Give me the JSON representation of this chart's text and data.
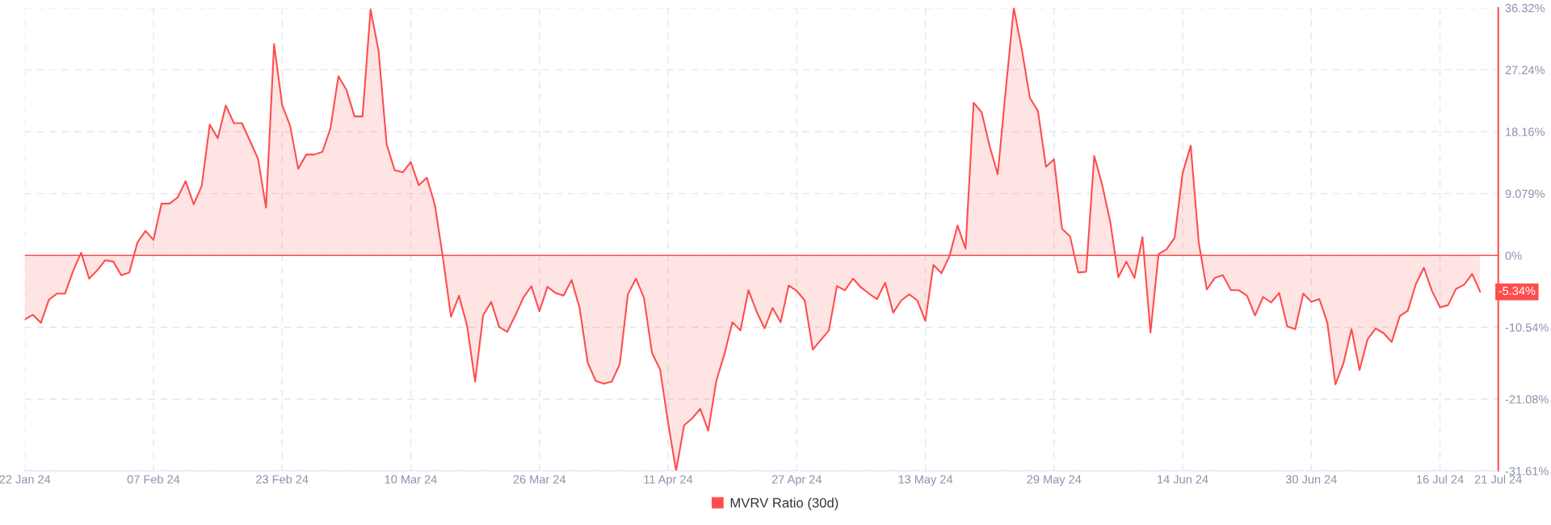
{
  "chart_data": {
    "type": "area",
    "x": [
      "2024-01-22",
      "2024-01-23",
      "2024-01-24",
      "2024-01-25",
      "2024-01-26",
      "2024-01-27",
      "2024-01-28",
      "2024-01-29",
      "2024-01-30",
      "2024-01-31",
      "2024-02-01",
      "2024-02-02",
      "2024-02-03",
      "2024-02-04",
      "2024-02-05",
      "2024-02-06",
      "2024-02-07",
      "2024-02-08",
      "2024-02-09",
      "2024-02-10",
      "2024-02-11",
      "2024-02-12",
      "2024-02-13",
      "2024-02-14",
      "2024-02-15",
      "2024-02-16",
      "2024-02-17",
      "2024-02-18",
      "2024-02-19",
      "2024-02-20",
      "2024-02-21",
      "2024-02-22",
      "2024-02-23",
      "2024-02-24",
      "2024-02-25",
      "2024-02-26",
      "2024-02-27",
      "2024-02-28",
      "2024-02-29",
      "2024-03-01",
      "2024-03-02",
      "2024-03-03",
      "2024-03-04",
      "2024-03-05",
      "2024-03-06",
      "2024-03-07",
      "2024-03-08",
      "2024-03-09",
      "2024-03-10",
      "2024-03-11",
      "2024-03-12",
      "2024-03-13",
      "2024-03-14",
      "2024-03-15",
      "2024-03-16",
      "2024-03-17",
      "2024-03-18",
      "2024-03-19",
      "2024-03-20",
      "2024-03-21",
      "2024-03-22",
      "2024-03-23",
      "2024-03-24",
      "2024-03-25",
      "2024-03-26",
      "2024-03-27",
      "2024-03-28",
      "2024-03-29",
      "2024-03-30",
      "2024-03-31",
      "2024-04-01",
      "2024-04-02",
      "2024-04-03",
      "2024-04-04",
      "2024-04-05",
      "2024-04-06",
      "2024-04-07",
      "2024-04-08",
      "2024-04-09",
      "2024-04-10",
      "2024-04-11",
      "2024-04-12",
      "2024-04-13",
      "2024-04-14",
      "2024-04-15",
      "2024-04-16",
      "2024-04-17",
      "2024-04-18",
      "2024-04-19",
      "2024-04-20",
      "2024-04-21",
      "2024-04-22",
      "2024-04-23",
      "2024-04-24",
      "2024-04-25",
      "2024-04-26",
      "2024-04-27",
      "2024-04-28",
      "2024-04-29",
      "2024-04-30",
      "2024-05-01",
      "2024-05-02",
      "2024-05-03",
      "2024-05-04",
      "2024-05-05",
      "2024-05-06",
      "2024-05-07",
      "2024-05-08",
      "2024-05-09",
      "2024-05-10",
      "2024-05-11",
      "2024-05-12",
      "2024-05-13",
      "2024-05-14",
      "2024-05-15",
      "2024-05-16",
      "2024-05-17",
      "2024-05-18",
      "2024-05-19",
      "2024-05-20",
      "2024-05-21",
      "2024-05-22",
      "2024-05-23",
      "2024-05-24",
      "2024-05-25",
      "2024-05-26",
      "2024-05-27",
      "2024-05-28",
      "2024-05-29",
      "2024-05-30",
      "2024-05-31",
      "2024-06-01",
      "2024-06-02",
      "2024-06-03",
      "2024-06-04",
      "2024-06-05",
      "2024-06-06",
      "2024-06-07",
      "2024-06-08",
      "2024-06-09",
      "2024-06-10",
      "2024-06-11",
      "2024-06-12",
      "2024-06-13",
      "2024-06-14",
      "2024-06-15",
      "2024-06-16",
      "2024-06-17",
      "2024-06-18",
      "2024-06-19",
      "2024-06-20",
      "2024-06-21",
      "2024-06-22",
      "2024-06-23",
      "2024-06-24",
      "2024-06-25",
      "2024-06-26",
      "2024-06-27",
      "2024-06-28",
      "2024-06-29",
      "2024-06-30",
      "2024-07-01",
      "2024-07-02",
      "2024-07-03",
      "2024-07-04",
      "2024-07-05",
      "2024-07-06",
      "2024-07-07",
      "2024-07-08",
      "2024-07-09",
      "2024-07-10",
      "2024-07-11",
      "2024-07-12",
      "2024-07-13",
      "2024-07-14",
      "2024-07-15",
      "2024-07-16",
      "2024-07-17",
      "2024-07-18",
      "2024-07-19",
      "2024-07-20",
      "2024-07-21"
    ],
    "series": [
      {
        "name": "MVRV Ratio (30d)",
        "color": "#ff4d4d",
        "values": [
          -9.4,
          -8.7,
          -9.9,
          -6.5,
          -5.6,
          -5.6,
          -2.3,
          0.4,
          -3.4,
          -2.2,
          -0.7,
          -0.9,
          -2.9,
          -2.5,
          1.9,
          3.6,
          2.3,
          7.6,
          7.6,
          8.5,
          10.9,
          7.5,
          10.2,
          19.2,
          17.2,
          22.0,
          19.4,
          19.4,
          16.8,
          14.2,
          7.0,
          31.0,
          22.1,
          19.0,
          12.7,
          14.8,
          14.8,
          15.2,
          18.6,
          26.3,
          24.3,
          20.4,
          20.4,
          36.1,
          30.0,
          16.3,
          12.5,
          12.2,
          13.7,
          10.3,
          11.4,
          7.4,
          -0.3,
          -9.0,
          -5.9,
          -10.3,
          -18.5,
          -8.8,
          -6.8,
          -10.5,
          -11.2,
          -8.8,
          -6.2,
          -4.5,
          -8.2,
          -4.6,
          -5.5,
          -5.9,
          -3.6,
          -7.7,
          -15.7,
          -18.4,
          -18.8,
          -18.5,
          -15.9,
          -5.7,
          -3.4,
          -6.2,
          -14.3,
          -16.7,
          -24.5,
          -31.6,
          -24.9,
          -23.9,
          -22.5,
          -25.7,
          -18.4,
          -14.5,
          -9.8,
          -11.0,
          -5.1,
          -8.2,
          -10.7,
          -7.7,
          -9.8,
          -4.4,
          -5.2,
          -6.6,
          -13.8,
          -12.4,
          -11.0,
          -4.5,
          -5.1,
          -3.4,
          -4.7,
          -5.6,
          -6.4,
          -4.0,
          -8.4,
          -6.6,
          -5.7,
          -6.6,
          -9.6,
          -1.4,
          -2.6,
          -0.1,
          4.4,
          1.0,
          22.4,
          21.0,
          16.0,
          11.9,
          24.3,
          36.3,
          30.2,
          23.1,
          21.2,
          13.0,
          14.1,
          3.9,
          2.8,
          -2.5,
          -2.4,
          14.6,
          10.3,
          4.9,
          -3.2,
          -0.9,
          -3.3,
          2.7,
          -11.3,
          0.2,
          0.9,
          2.6,
          12.1,
          16.1,
          1.9,
          -5.0,
          -3.3,
          -2.9,
          -5.1,
          -5.1,
          -5.9,
          -8.8,
          -6.1,
          -6.9,
          -5.5,
          -10.4,
          -10.8,
          -5.6,
          -6.8,
          -6.4,
          -9.9,
          -18.9,
          -15.8,
          -10.8,
          -16.8,
          -12.3,
          -10.7,
          -11.4,
          -12.7,
          -8.9,
          -8.1,
          -4.2,
          -1.8,
          -5.2,
          -7.6,
          -7.3,
          -4.9,
          -4.3,
          -2.7,
          -5.34
        ]
      }
    ],
    "xlim": [
      "2024-01-22",
      "2024-07-23T06:00"
    ],
    "xticks": [
      {
        "value": "2024-01-22",
        "label": "22 Jan 24"
      },
      {
        "value": "2024-02-07",
        "label": "07 Feb 24"
      },
      {
        "value": "2024-02-23",
        "label": "23 Feb 24"
      },
      {
        "value": "2024-03-10",
        "label": "10 Mar 24"
      },
      {
        "value": "2024-03-26",
        "label": "26 Mar 24"
      },
      {
        "value": "2024-04-11",
        "label": "11 Apr 24"
      },
      {
        "value": "2024-04-27",
        "label": "27 Apr 24"
      },
      {
        "value": "2024-05-13",
        "label": "13 May 24"
      },
      {
        "value": "2024-05-29",
        "label": "29 May 24"
      },
      {
        "value": "2024-06-14",
        "label": "14 Jun 24"
      },
      {
        "value": "2024-06-30",
        "label": "30 Jun 24"
      },
      {
        "value": "2024-07-16",
        "label": "16 Jul 24"
      },
      {
        "value": "2024-07-23T06:00",
        "label": "21 Jul 24"
      }
    ],
    "ylim": [
      -31.61,
      36.32
    ],
    "yticks": [
      {
        "value": 36.32,
        "label": "36.32%"
      },
      {
        "value": 27.24,
        "label": "27.24%"
      },
      {
        "value": 18.16,
        "label": "18.16%"
      },
      {
        "value": 9.079,
        "label": "9.079%"
      },
      {
        "value": 0,
        "label": "0%"
      },
      {
        "value": -10.54,
        "label": "-10.54%"
      },
      {
        "value": -21.08,
        "label": "-21.08%"
      },
      {
        "value": -31.61,
        "label": "-31.61%"
      }
    ],
    "ref_lines": [
      {
        "axis": "y",
        "value": 0,
        "color": "#ff4d4d"
      }
    ],
    "annotations": [
      {
        "text": "-5.34%",
        "x": "2024-07-21",
        "y": -5.34
      }
    ],
    "grid": true,
    "legend": "bottom",
    "line_style": "solid"
  }
}
